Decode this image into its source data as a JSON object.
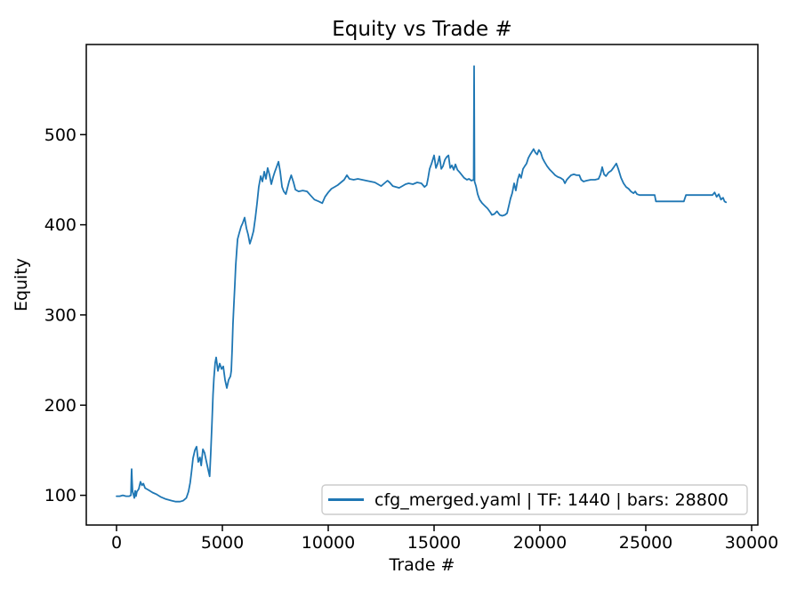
{
  "chart_data": {
    "type": "line",
    "title": "Equity vs Trade #",
    "xlabel": "Trade #",
    "ylabel": "Equity",
    "grid": false,
    "line_color": "#1f77b4",
    "line_width": 1.8,
    "x_ticks": [
      0,
      5000,
      10000,
      15000,
      20000,
      25000,
      30000
    ],
    "y_ticks": [
      100,
      200,
      300,
      400,
      500
    ],
    "xlim": [
      -1429,
      30294
    ],
    "ylim": [
      67,
      600
    ],
    "legend": {
      "position": "lower right",
      "entries": [
        {
          "label": "cfg_merged.yaml | TF: 1440 | bars: 28800",
          "color": "#1f77b4"
        }
      ]
    },
    "series": [
      {
        "name": "cfg_merged.yaml | TF: 1440 | bars: 28800",
        "points": [
          [
            0,
            99
          ],
          [
            150,
            99
          ],
          [
            300,
            100
          ],
          [
            450,
            99
          ],
          [
            600,
            99
          ],
          [
            680,
            100
          ],
          [
            700,
            121
          ],
          [
            715,
            129
          ],
          [
            730,
            118
          ],
          [
            760,
            104
          ],
          [
            800,
            101
          ],
          [
            840,
            97
          ],
          [
            880,
            105
          ],
          [
            920,
            99
          ],
          [
            960,
            104
          ],
          [
            1050,
            107
          ],
          [
            1130,
            115
          ],
          [
            1200,
            111
          ],
          [
            1270,
            113
          ],
          [
            1350,
            108
          ],
          [
            1500,
            106
          ],
          [
            1700,
            103
          ],
          [
            1900,
            101
          ],
          [
            2100,
            98
          ],
          [
            2300,
            96
          ],
          [
            2450,
            95
          ],
          [
            2600,
            94
          ],
          [
            2800,
            93
          ],
          [
            3000,
            93
          ],
          [
            3150,
            94
          ],
          [
            3300,
            97
          ],
          [
            3400,
            104
          ],
          [
            3480,
            114
          ],
          [
            3540,
            126
          ],
          [
            3615,
            141
          ],
          [
            3700,
            150
          ],
          [
            3780,
            154
          ],
          [
            3860,
            137
          ],
          [
            3940,
            142
          ],
          [
            4000,
            133
          ],
          [
            4080,
            151
          ],
          [
            4160,
            147
          ],
          [
            4240,
            138
          ],
          [
            4330,
            128
          ],
          [
            4400,
            121
          ],
          [
            4450,
            146
          ],
          [
            4510,
            180
          ],
          [
            4560,
            212
          ],
          [
            4600,
            230
          ],
          [
            4660,
            247
          ],
          [
            4705,
            253
          ],
          [
            4790,
            238
          ],
          [
            4875,
            246
          ],
          [
            4960,
            240
          ],
          [
            5040,
            243
          ],
          [
            5125,
            228
          ],
          [
            5210,
            219
          ],
          [
            5295,
            228
          ],
          [
            5380,
            232
          ],
          [
            5420,
            238
          ],
          [
            5460,
            262
          ],
          [
            5500,
            290
          ],
          [
            5550,
            315
          ],
          [
            5590,
            335
          ],
          [
            5630,
            355
          ],
          [
            5680,
            372
          ],
          [
            5720,
            384
          ],
          [
            5800,
            391
          ],
          [
            5880,
            398
          ],
          [
            5960,
            402
          ],
          [
            6050,
            408
          ],
          [
            6140,
            396
          ],
          [
            6220,
            389
          ],
          [
            6300,
            379
          ],
          [
            6390,
            386
          ],
          [
            6470,
            393
          ],
          [
            6560,
            408
          ],
          [
            6640,
            424
          ],
          [
            6720,
            442
          ],
          [
            6810,
            454
          ],
          [
            6890,
            448
          ],
          [
            6980,
            459
          ],
          [
            7060,
            451
          ],
          [
            7140,
            463
          ],
          [
            7230,
            455
          ],
          [
            7310,
            445
          ],
          [
            7400,
            453
          ],
          [
            7480,
            459
          ],
          [
            7560,
            464
          ],
          [
            7650,
            470
          ],
          [
            7730,
            459
          ],
          [
            7820,
            442
          ],
          [
            7900,
            437
          ],
          [
            8000,
            434
          ],
          [
            8150,
            448
          ],
          [
            8250,
            455
          ],
          [
            8360,
            447
          ],
          [
            8450,
            439
          ],
          [
            8600,
            437
          ],
          [
            8800,
            438
          ],
          [
            9000,
            437
          ],
          [
            9150,
            433
          ],
          [
            9350,
            428
          ],
          [
            9550,
            426
          ],
          [
            9720,
            424
          ],
          [
            9850,
            431
          ],
          [
            10000,
            436
          ],
          [
            10150,
            440
          ],
          [
            10300,
            442
          ],
          [
            10450,
            444
          ],
          [
            10600,
            447
          ],
          [
            10750,
            450
          ],
          [
            10880,
            455
          ],
          [
            11000,
            451
          ],
          [
            11200,
            450
          ],
          [
            11400,
            451
          ],
          [
            11600,
            450
          ],
          [
            11800,
            449
          ],
          [
            12000,
            448
          ],
          [
            12200,
            447
          ],
          [
            12350,
            445
          ],
          [
            12500,
            443
          ],
          [
            12650,
            446
          ],
          [
            12800,
            449
          ],
          [
            12900,
            447
          ],
          [
            13050,
            443
          ],
          [
            13200,
            442
          ],
          [
            13350,
            441
          ],
          [
            13500,
            443
          ],
          [
            13650,
            445
          ],
          [
            13800,
            446
          ],
          [
            14000,
            445
          ],
          [
            14200,
            447
          ],
          [
            14400,
            446
          ],
          [
            14550,
            442
          ],
          [
            14650,
            444
          ],
          [
            14720,
            452
          ],
          [
            14790,
            462
          ],
          [
            14880,
            468
          ],
          [
            15000,
            477
          ],
          [
            15090,
            463
          ],
          [
            15170,
            468
          ],
          [
            15250,
            476
          ],
          [
            15340,
            462
          ],
          [
            15420,
            465
          ],
          [
            15510,
            472
          ],
          [
            15590,
            475
          ],
          [
            15680,
            477
          ],
          [
            15760,
            463
          ],
          [
            15840,
            466
          ],
          [
            15930,
            461
          ],
          [
            16010,
            467
          ],
          [
            16100,
            461
          ],
          [
            16220,
            458
          ],
          [
            16320,
            455
          ],
          [
            16420,
            452
          ],
          [
            16550,
            450
          ],
          [
            16650,
            451
          ],
          [
            16760,
            449
          ],
          [
            16870,
            450
          ],
          [
            16890,
            576
          ],
          [
            16910,
            448
          ],
          [
            16980,
            443
          ],
          [
            17060,
            434
          ],
          [
            17150,
            428
          ],
          [
            17270,
            424
          ],
          [
            17400,
            421
          ],
          [
            17530,
            418
          ],
          [
            17650,
            414
          ],
          [
            17730,
            411
          ],
          [
            17850,
            412
          ],
          [
            17970,
            415
          ],
          [
            18100,
            411
          ],
          [
            18220,
            410
          ],
          [
            18350,
            411
          ],
          [
            18450,
            413
          ],
          [
            18530,
            421
          ],
          [
            18610,
            429
          ],
          [
            18690,
            435
          ],
          [
            18780,
            446
          ],
          [
            18860,
            438
          ],
          [
            18950,
            450
          ],
          [
            19030,
            456
          ],
          [
            19110,
            452
          ],
          [
            19200,
            462
          ],
          [
            19280,
            465
          ],
          [
            19370,
            468
          ],
          [
            19450,
            474
          ],
          [
            19540,
            478
          ],
          [
            19700,
            484
          ],
          [
            19790,
            480
          ],
          [
            19870,
            478
          ],
          [
            19950,
            483
          ],
          [
            20040,
            480
          ],
          [
            20120,
            474
          ],
          [
            20210,
            470
          ],
          [
            20340,
            465
          ],
          [
            20470,
            461
          ],
          [
            20600,
            458
          ],
          [
            20720,
            455
          ],
          [
            20850,
            453
          ],
          [
            20970,
            452
          ],
          [
            21100,
            450
          ],
          [
            21180,
            446
          ],
          [
            21270,
            450
          ],
          [
            21350,
            452
          ],
          [
            21470,
            455
          ],
          [
            21600,
            456
          ],
          [
            21730,
            455
          ],
          [
            21860,
            455
          ],
          [
            21950,
            450
          ],
          [
            22060,
            448
          ],
          [
            22200,
            449
          ],
          [
            22400,
            450
          ],
          [
            22600,
            450
          ],
          [
            22770,
            451
          ],
          [
            22860,
            456
          ],
          [
            22940,
            464
          ],
          [
            23030,
            456
          ],
          [
            23120,
            454
          ],
          [
            23240,
            458
          ],
          [
            23370,
            460
          ],
          [
            23490,
            464
          ],
          [
            23610,
            468
          ],
          [
            23700,
            462
          ],
          [
            23830,
            452
          ],
          [
            23950,
            446
          ],
          [
            24070,
            442
          ],
          [
            24190,
            440
          ],
          [
            24300,
            437
          ],
          [
            24420,
            435
          ],
          [
            24500,
            437
          ],
          [
            24590,
            434
          ],
          [
            24700,
            433
          ],
          [
            25000,
            433
          ],
          [
            25300,
            433
          ],
          [
            25420,
            433
          ],
          [
            25480,
            426
          ],
          [
            25700,
            426
          ],
          [
            26000,
            426
          ],
          [
            26400,
            426
          ],
          [
            26800,
            426
          ],
          [
            26900,
            433
          ],
          [
            27200,
            433
          ],
          [
            27600,
            433
          ],
          [
            28000,
            433
          ],
          [
            28150,
            433
          ],
          [
            28250,
            436
          ],
          [
            28350,
            431
          ],
          [
            28450,
            434
          ],
          [
            28550,
            428
          ],
          [
            28650,
            430
          ],
          [
            28720,
            426
          ],
          [
            28790,
            425
          ]
        ]
      }
    ]
  }
}
